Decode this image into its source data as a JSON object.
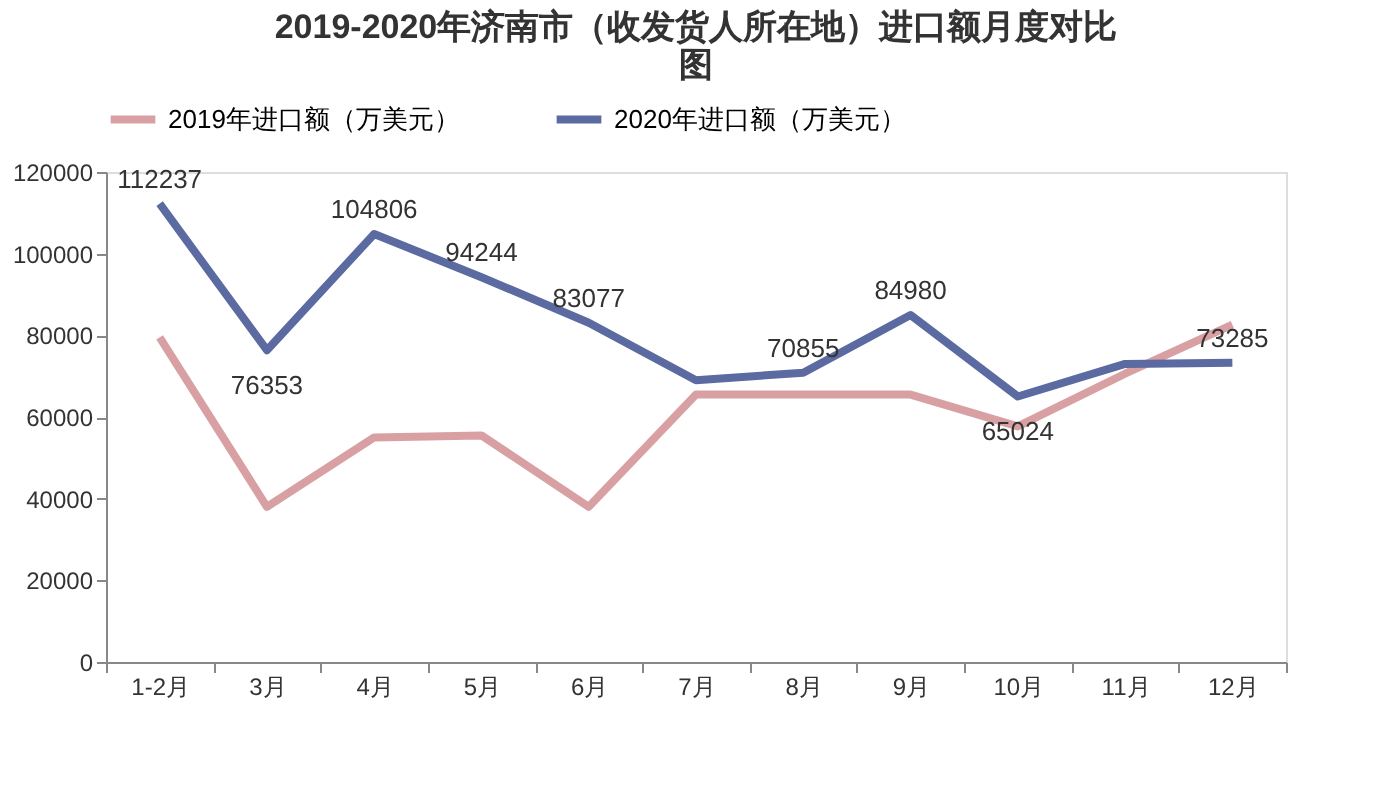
{
  "chart_data": {
    "type": "line",
    "title": [
      "2019-2020年济南市（收发货人所在地）进口额月度对比",
      "图"
    ],
    "categories": [
      "1-2月",
      "3月",
      "4月",
      "5月",
      "6月",
      "7月",
      "8月",
      "9月",
      "10月",
      "11月",
      "12月"
    ],
    "series": [
      {
        "name": "2019年进口额（万美元）",
        "color": "#d9a0a4",
        "values": [
          79500,
          38000,
          55000,
          55500,
          38000,
          65500,
          65500,
          65500,
          57700,
          70600,
          82600
        ]
      },
      {
        "name": "2020年进口额（万美元）",
        "color": "#5b6aa0",
        "values": [
          112237,
          76353,
          104806,
          94244,
          83077,
          69000,
          70855,
          84980,
          65024,
          73000,
          73285
        ],
        "value_labels": [
          "112237",
          "76353",
          "104806",
          "94244",
          "83077",
          null,
          "70855",
          "84980",
          "65024",
          null,
          "73285"
        ]
      }
    ],
    "ylim": [
      0,
      120000
    ],
    "yticks": [
      0,
      20000,
      40000,
      60000,
      80000,
      100000,
      120000
    ],
    "grid": false,
    "legend": "top",
    "marker": "none",
    "line_style": "solid"
  }
}
